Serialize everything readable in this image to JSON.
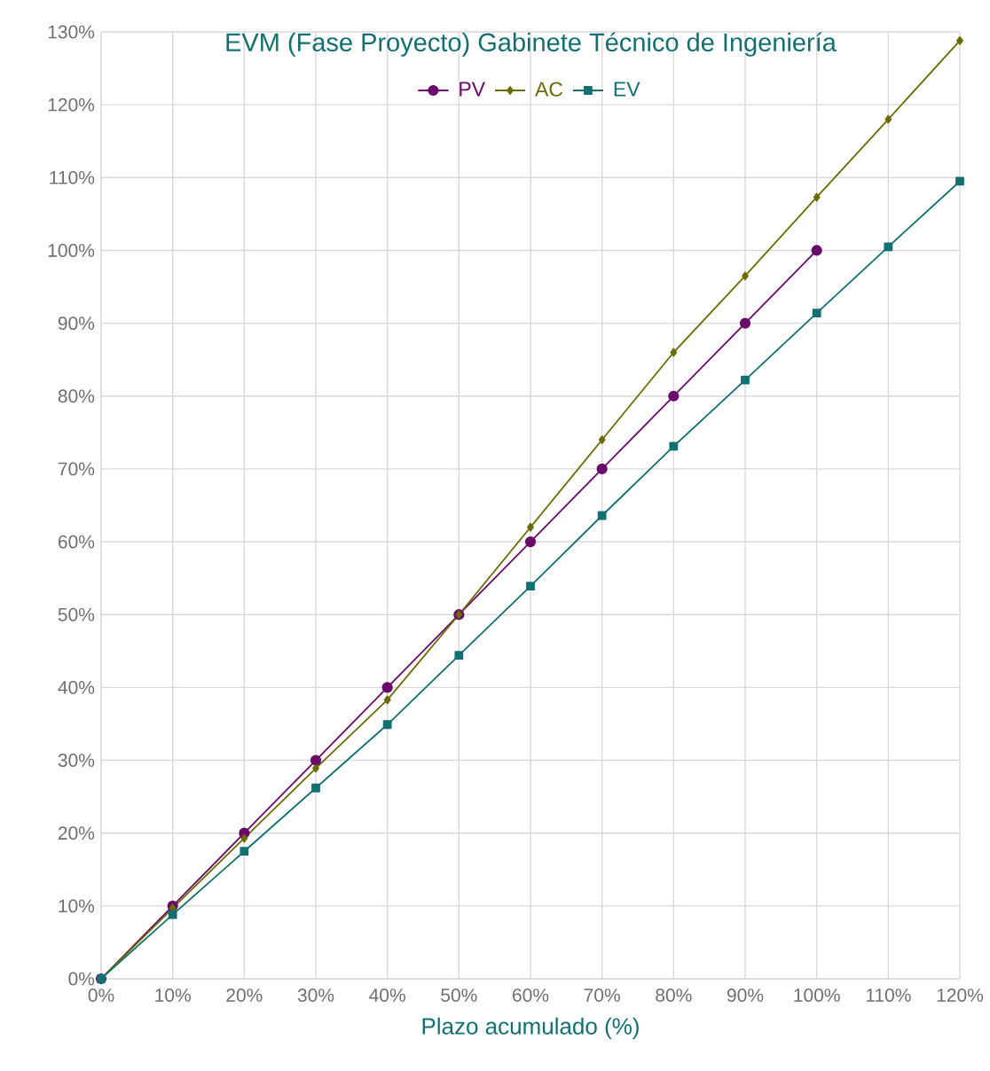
{
  "chart_data": {
    "type": "line",
    "title": "EVM (Fase Proyecto) Gabinete Técnico de Ingeniería",
    "xlabel": "Plazo acumulado (%)",
    "x": [
      0,
      10,
      20,
      30,
      40,
      50,
      60,
      70,
      80,
      90,
      100,
      110,
      120
    ],
    "series": [
      {
        "name": "PV",
        "color": "#6a0a6a",
        "marker": "circle",
        "x": [
          0,
          10,
          20,
          30,
          40,
          50,
          60,
          70,
          80,
          90,
          100
        ],
        "values": [
          0,
          10,
          20,
          30,
          40,
          50,
          60,
          70,
          80,
          90,
          100
        ]
      },
      {
        "name": "AC",
        "color": "#6b6b00",
        "marker": "diamond",
        "values": [
          0,
          9.7,
          19.3,
          28.9,
          38.3,
          50,
          62,
          74,
          86,
          96.5,
          107.3,
          118,
          128.8
        ]
      },
      {
        "name": "EV",
        "color": "#127070",
        "marker": "square",
        "values": [
          0,
          8.8,
          17.5,
          26.2,
          34.9,
          44.4,
          53.9,
          63.6,
          73.1,
          82.2,
          91.4,
          100.5,
          109.5
        ]
      }
    ],
    "xlim": [
      0,
      120
    ],
    "ylim": [
      0,
      130
    ],
    "xticks": [
      {
        "value": 0,
        "label": "0%"
      },
      {
        "value": 10,
        "label": "10%"
      },
      {
        "value": 20,
        "label": "20%"
      },
      {
        "value": 30,
        "label": "30%"
      },
      {
        "value": 40,
        "label": "40%"
      },
      {
        "value": 50,
        "label": "50%"
      },
      {
        "value": 60,
        "label": "60%"
      },
      {
        "value": 70,
        "label": "70%"
      },
      {
        "value": 80,
        "label": "80%"
      },
      {
        "value": 90,
        "label": "90%"
      },
      {
        "value": 100,
        "label": "100%"
      },
      {
        "value": 110,
        "label": "110%"
      },
      {
        "value": 120,
        "label": "120%"
      }
    ],
    "yticks": [
      {
        "value": 0,
        "label": "0%"
      },
      {
        "value": 10,
        "label": "10%"
      },
      {
        "value": 20,
        "label": "20%"
      },
      {
        "value": 30,
        "label": "30%"
      },
      {
        "value": 40,
        "label": "40%"
      },
      {
        "value": 50,
        "label": "50%"
      },
      {
        "value": 60,
        "label": "60%"
      },
      {
        "value": 70,
        "label": "70%"
      },
      {
        "value": 80,
        "label": "80%"
      },
      {
        "value": 90,
        "label": "90%"
      },
      {
        "value": 100,
        "label": "100%"
      },
      {
        "value": 110,
        "label": "110%"
      },
      {
        "value": 120,
        "label": "120%"
      },
      {
        "value": 130,
        "label": "130%"
      }
    ],
    "grid": true,
    "legend": "top",
    "line_style": "solid"
  }
}
